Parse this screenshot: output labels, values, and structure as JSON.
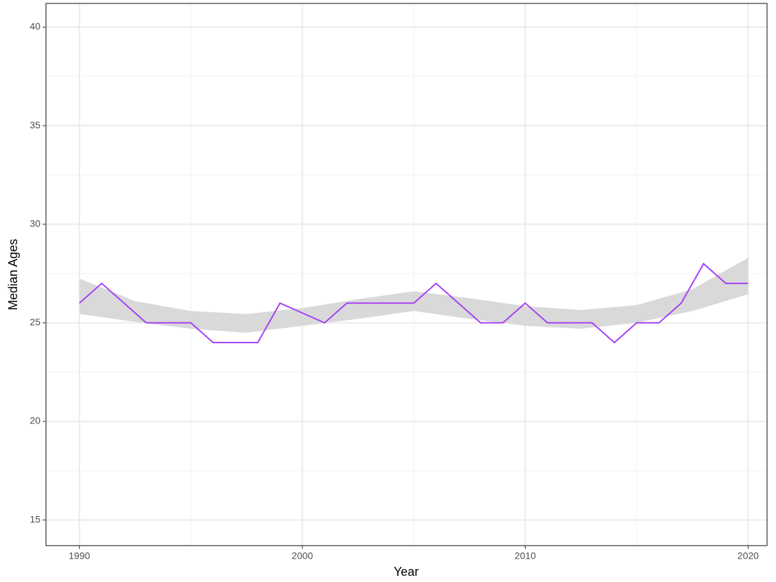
{
  "chart_data": {
    "type": "line",
    "xlabel": "Year",
    "ylabel": "Median Ages",
    "x": [
      1990,
      1991,
      1992,
      1993,
      1994,
      1995,
      1996,
      1997,
      1998,
      1999,
      2000,
      2001,
      2002,
      2003,
      2004,
      2005,
      2006,
      2007,
      2008,
      2009,
      2010,
      2011,
      2012,
      2013,
      2014,
      2015,
      2016,
      2017,
      2018,
      2019,
      2020
    ],
    "series": [
      {
        "color": "#a43ff5",
        "values": [
          26,
          27,
          26,
          25,
          25,
          25,
          24,
          24,
          24,
          26,
          25.5,
          25,
          26,
          26,
          26,
          26,
          27,
          26,
          25,
          25,
          26,
          25,
          25,
          25,
          24,
          25,
          25,
          26,
          28,
          27,
          27
        ]
      }
    ],
    "band": {
      "color": "#d9d9d9",
      "x": [
        1990,
        1992.5,
        1995,
        1997.5,
        2000,
        2002.5,
        2005,
        2007.5,
        2010,
        2012.5,
        2015,
        2017.5,
        2020
      ],
      "lower": [
        25.45,
        25.05,
        24.7,
        24.5,
        24.85,
        25.2,
        25.6,
        25.2,
        24.85,
        24.7,
        25.0,
        25.6,
        26.45
      ],
      "upper": [
        27.25,
        26.1,
        25.6,
        25.45,
        25.75,
        26.2,
        26.6,
        26.25,
        25.85,
        25.65,
        25.9,
        26.7,
        28.3
      ]
    },
    "xlim": [
      1988.5,
      2020.85
    ],
    "xticks": [
      1990,
      2000,
      2010,
      2020
    ],
    "xminor": [
      1995,
      2005,
      2015
    ],
    "ylim": [
      13.7,
      41.2
    ],
    "yticks": [
      15,
      20,
      25,
      30,
      35,
      40
    ],
    "yminor": [
      17.5,
      22.5,
      27.5,
      32.5,
      37.5
    ],
    "grid": true
  }
}
